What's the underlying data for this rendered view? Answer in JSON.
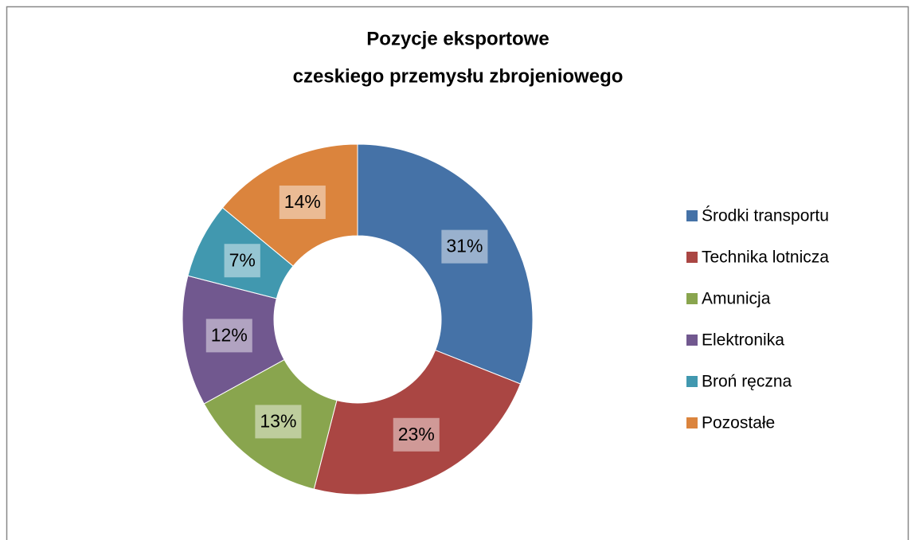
{
  "chart_data": {
    "type": "donut",
    "title": [
      "Pozycje eksportowe",
      "czeskiego przemysłu zbrojeniowego"
    ],
    "categories": [
      "Środki transportu",
      "Technika lotnicza",
      "Amunicja",
      "Elektronika",
      "Broń ręczna",
      "Pozostałe"
    ],
    "values": [
      31,
      23,
      13,
      12,
      7,
      14
    ],
    "value_labels": [
      "31%",
      "23%",
      "13%",
      "12%",
      "7%",
      "14%"
    ],
    "colors": [
      "#4572a7",
      "#aa4643",
      "#89a54e",
      "#71588f",
      "#4198af",
      "#db843d"
    ],
    "legend": "right"
  }
}
